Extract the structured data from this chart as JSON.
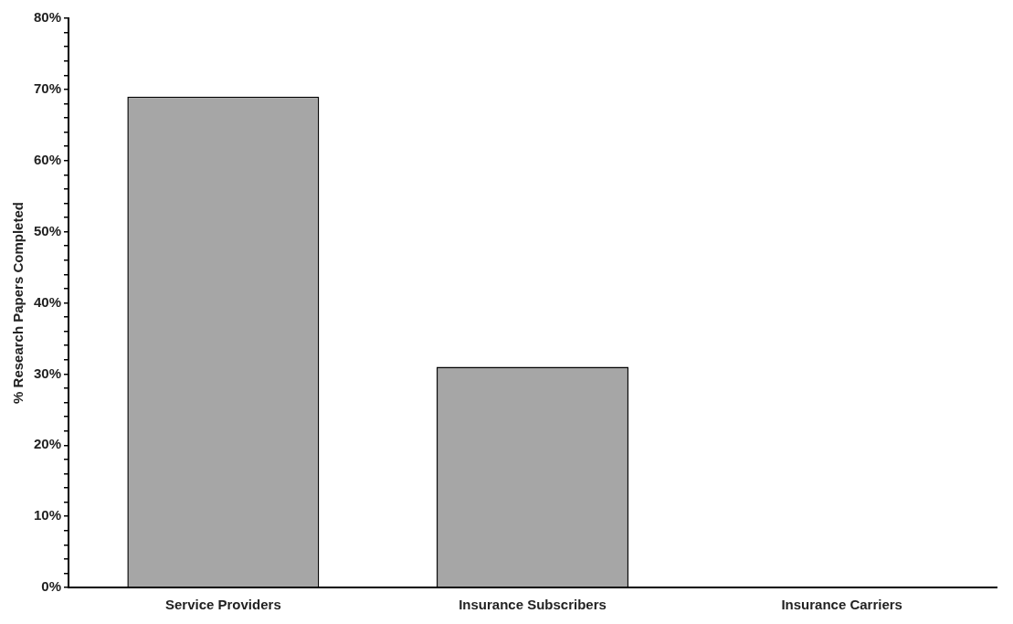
{
  "chart_data": {
    "type": "bar",
    "ylabel": "% Research Papers Completed",
    "categories": [
      "Service Providers",
      "Insurance Subscribers",
      "Insurance Carriers"
    ],
    "values": [
      69,
      31,
      0
    ],
    "color": "#a6a6a6",
    "ylim": [
      0,
      80
    ],
    "yticks": [
      {
        "value": 0,
        "label": "0%"
      },
      {
        "value": 2,
        "label": null
      },
      {
        "value": 4,
        "label": null
      },
      {
        "value": 6,
        "label": null
      },
      {
        "value": 8,
        "label": null
      },
      {
        "value": 10,
        "label": "10%"
      },
      {
        "value": 12,
        "label": null
      },
      {
        "value": 14,
        "label": null
      },
      {
        "value": 16,
        "label": null
      },
      {
        "value": 18,
        "label": null
      },
      {
        "value": 20,
        "label": "20%"
      },
      {
        "value": 22,
        "label": null
      },
      {
        "value": 24,
        "label": null
      },
      {
        "value": 26,
        "label": null
      },
      {
        "value": 28,
        "label": null
      },
      {
        "value": 30,
        "label": "30%"
      },
      {
        "value": 32,
        "label": null
      },
      {
        "value": 34,
        "label": null
      },
      {
        "value": 36,
        "label": null
      },
      {
        "value": 38,
        "label": null
      },
      {
        "value": 40,
        "label": "40%"
      },
      {
        "value": 42,
        "label": null
      },
      {
        "value": 44,
        "label": null
      },
      {
        "value": 46,
        "label": null
      },
      {
        "value": 48,
        "label": null
      },
      {
        "value": 50,
        "label": "50%"
      },
      {
        "value": 52,
        "label": null
      },
      {
        "value": 54,
        "label": null
      },
      {
        "value": 56,
        "label": null
      },
      {
        "value": 58,
        "label": null
      },
      {
        "value": 60,
        "label": "60%"
      },
      {
        "value": 62,
        "label": null
      },
      {
        "value": 64,
        "label": null
      },
      {
        "value": 66,
        "label": null
      },
      {
        "value": 68,
        "label": null
      },
      {
        "value": 70,
        "label": "70%"
      },
      {
        "value": 72,
        "label": null
      },
      {
        "value": 74,
        "label": null
      },
      {
        "value": 76,
        "label": null
      },
      {
        "value": 78,
        "label": null
      },
      {
        "value": 80,
        "label": "80%"
      }
    ],
    "grid": false,
    "legend": false
  }
}
